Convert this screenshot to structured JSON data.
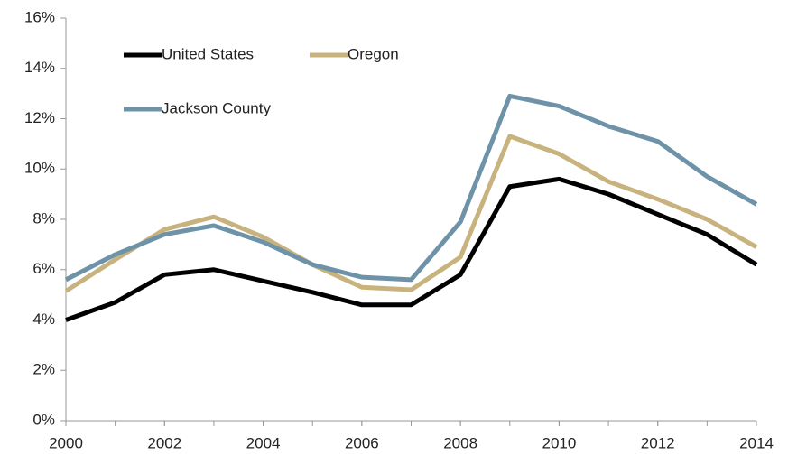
{
  "chart_data": {
    "type": "line",
    "x": [
      2000,
      2001,
      2002,
      2003,
      2004,
      2005,
      2006,
      2007,
      2008,
      2009,
      2010,
      2011,
      2012,
      2013,
      2014
    ],
    "xlim": [
      2000,
      2014
    ],
    "xticks": [
      2000,
      2002,
      2004,
      2006,
      2008,
      2010,
      2012,
      2014
    ],
    "ylim": [
      0,
      16
    ],
    "yticks": [
      {
        "value": 0,
        "label": "0%"
      },
      {
        "value": 2,
        "label": "2%"
      },
      {
        "value": 4,
        "label": "4%"
      },
      {
        "value": 6,
        "label": "6%"
      },
      {
        "value": 8,
        "label": "8%"
      },
      {
        "value": 10,
        "label": "10%"
      },
      {
        "value": 12,
        "label": "12%"
      },
      {
        "value": 14,
        "label": "14%"
      },
      {
        "value": 16,
        "label": "16%"
      }
    ],
    "grid": false,
    "series": [
      {
        "name": "United States",
        "color": "#000000",
        "values": [
          4.0,
          4.7,
          5.8,
          6.0,
          5.55,
          5.1,
          4.6,
          4.6,
          5.8,
          9.3,
          9.6,
          9.0,
          8.2,
          7.4,
          6.2
        ]
      },
      {
        "name": "Oregon",
        "color": "#c8b27e",
        "values": [
          5.15,
          6.4,
          7.6,
          8.1,
          7.3,
          6.2,
          5.3,
          5.2,
          6.5,
          11.3,
          10.6,
          9.5,
          8.8,
          8.0,
          6.9
        ]
      },
      {
        "name": "Jackson County",
        "color": "#6e93a8",
        "values": [
          5.6,
          6.6,
          7.4,
          7.75,
          7.1,
          6.2,
          5.7,
          5.6,
          7.9,
          12.9,
          12.5,
          11.7,
          11.1,
          9.7,
          8.6
        ]
      }
    ]
  }
}
